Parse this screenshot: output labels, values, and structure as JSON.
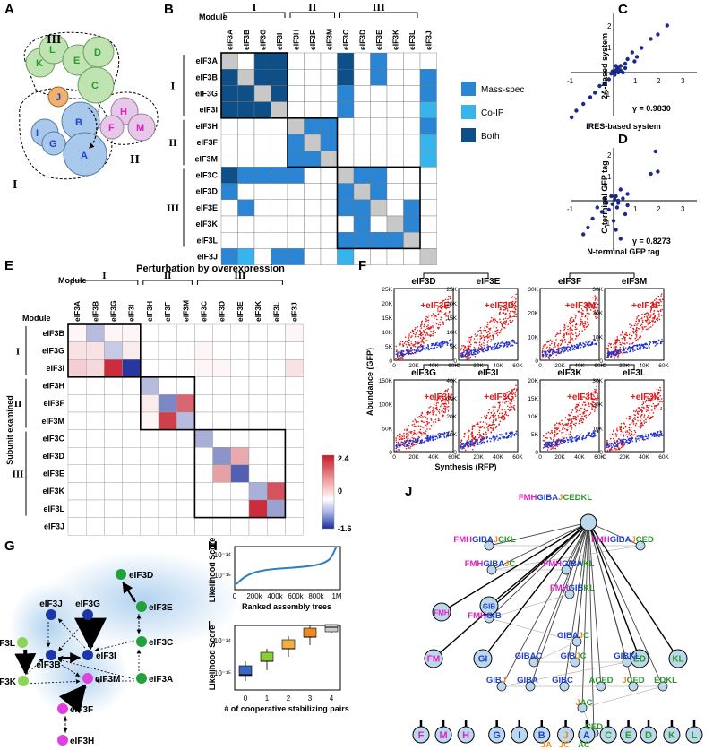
{
  "panels": {
    "A": {
      "letter": "A",
      "modules": [
        "I",
        "II",
        "III"
      ],
      "subunits": [
        "K",
        "L",
        "E",
        "D",
        "J",
        "C",
        "H",
        "F",
        "M",
        "I",
        "B",
        "G",
        "A"
      ],
      "colors": {
        "module_I": "#a8c8ec",
        "module_II": "#e6c8e8",
        "module_III": "#bfe4b2",
        "J": "#f0b070",
        "letter_green": "#2a9a2a",
        "letter_magenta": "#e020c0",
        "letter_blue": "#2040d0"
      }
    },
    "B": {
      "letter": "B",
      "module_header": "Module",
      "modules": [
        "I",
        "II",
        "III"
      ],
      "col_labels": [
        "eIF3A",
        "eIF3B",
        "eIF3G",
        "eIF3I",
        "eIF3H",
        "eIF3F",
        "eIF3M",
        "eIF3C",
        "eIF3D",
        "eIF3E",
        "eIF3K",
        "eIF3L",
        "eIF3J"
      ],
      "row_labels": [
        "eIF3A",
        "eIF3B",
        "eIF3G",
        "eIF3I",
        "eIF3H",
        "eIF3F",
        "eIF3M",
        "eIF3C",
        "eIF3D",
        "eIF3E",
        "eIF3K",
        "eIF3L",
        "eIF3J"
      ],
      "legend": [
        {
          "label": "Mass-spec",
          "color": "#2a86d4"
        },
        {
          "label": "Co-IP",
          "color": "#38b4ec"
        },
        {
          "label": "Both",
          "color": "#0d4f86"
        }
      ],
      "diag_color": "#c8c8c8",
      "matrix": [
        [
          9,
          0,
          3,
          3,
          0,
          0,
          0,
          3,
          0,
          1,
          0,
          0,
          0
        ],
        [
          3,
          9,
          3,
          3,
          0,
          0,
          0,
          3,
          0,
          1,
          0,
          0,
          1
        ],
        [
          3,
          3,
          9,
          3,
          0,
          0,
          0,
          1,
          0,
          0,
          0,
          0,
          1
        ],
        [
          3,
          3,
          3,
          9,
          0,
          0,
          0,
          1,
          0,
          0,
          0,
          0,
          2
        ],
        [
          0,
          0,
          0,
          0,
          9,
          1,
          1,
          0,
          0,
          0,
          0,
          0,
          1
        ],
        [
          0,
          0,
          0,
          0,
          1,
          9,
          1,
          0,
          0,
          0,
          0,
          0,
          2
        ],
        [
          0,
          0,
          0,
          0,
          1,
          1,
          9,
          0,
          0,
          0,
          0,
          0,
          2
        ],
        [
          3,
          1,
          1,
          1,
          1,
          0,
          0,
          9,
          1,
          1,
          0,
          0,
          0
        ],
        [
          1,
          0,
          0,
          0,
          0,
          0,
          0,
          1,
          9,
          1,
          0,
          0,
          0
        ],
        [
          0,
          1,
          0,
          0,
          0,
          0,
          0,
          1,
          1,
          9,
          0,
          1,
          0
        ],
        [
          0,
          0,
          0,
          0,
          0,
          0,
          0,
          0,
          1,
          0,
          9,
          1,
          0
        ],
        [
          0,
          0,
          0,
          0,
          0,
          0,
          0,
          1,
          1,
          1,
          1,
          9,
          0
        ],
        [
          1,
          2,
          0,
          1,
          1,
          0,
          0,
          2,
          0,
          0,
          0,
          0,
          9
        ]
      ]
    },
    "C": {
      "letter": "C",
      "xlabel": "IRES-based system",
      "ylabel": "2A-based system",
      "annotation": "γ = 0.9830"
    },
    "D": {
      "letter": "D",
      "xlabel": "N-terminal GFP tag",
      "ylabel": "C-terminal GFP tag",
      "annotation": "γ = 0.8273"
    },
    "E": {
      "letter": "E",
      "title": "Perturbation by overexpression",
      "module_header": "Module",
      "row_module_header": "Module",
      "yaxis_title": "Subunit examined",
      "modules": [
        "I",
        "II",
        "III"
      ],
      "col_labels": [
        "eIF3A",
        "eIF3B",
        "eIF3G",
        "eIF3I",
        "eIF3H",
        "eIF3F",
        "eIF3M",
        "eIF3C",
        "eIF3D",
        "eIF3E",
        "eIF3K",
        "eIF3L",
        "eIF3J"
      ],
      "row_labels": [
        "eIF3B",
        "eIF3G",
        "eIF3I",
        "eIF3H",
        "eIF3F",
        "eIF3M",
        "eIF3C",
        "eIF3D",
        "eIF3E",
        "eIF3K",
        "eIF3L",
        "eIF3J"
      ],
      "colorbar_ticks": [
        "2.4",
        "0",
        "-1.6"
      ],
      "colorbar_range": [
        -1.6,
        2.4
      ],
      "matrix": [
        [
          0.1,
          -0.5,
          0.1,
          0.1,
          0,
          0,
          0,
          0,
          0,
          0,
          0,
          0,
          0.1
        ],
        [
          0.3,
          0.3,
          -0.4,
          0.2,
          0,
          0,
          0,
          0.1,
          0,
          0,
          0,
          0,
          0
        ],
        [
          0.5,
          0.4,
          2.2,
          -1.5,
          0,
          0,
          0,
          0.1,
          0.1,
          0,
          0,
          0,
          0.3
        ],
        [
          0,
          0,
          0,
          0,
          -0.5,
          0,
          0,
          0,
          0,
          0,
          0,
          0,
          0
        ],
        [
          0,
          0,
          0,
          0,
          0.2,
          -0.9,
          1.6,
          0,
          0,
          0,
          0,
          0,
          0
        ],
        [
          0,
          0,
          0,
          0,
          0.1,
          2.0,
          -0.5,
          0,
          0,
          0,
          0,
          0,
          0
        ],
        [
          0,
          0,
          0,
          0,
          0,
          0,
          0,
          -0.6,
          0,
          0,
          0,
          0,
          0
        ],
        [
          0,
          0,
          0,
          0,
          0,
          0,
          0,
          0,
          -0.8,
          0.9,
          0,
          0,
          0
        ],
        [
          0,
          0,
          0,
          0,
          0,
          0,
          0,
          0,
          1.0,
          -1.2,
          0,
          0,
          0
        ],
        [
          0,
          0,
          0,
          0,
          0,
          0,
          0,
          0,
          0,
          0,
          -0.6,
          1.8,
          0
        ],
        [
          0,
          0,
          0,
          0,
          0,
          0,
          0,
          0,
          0,
          0,
          2.2,
          -0.7,
          0
        ],
        [
          0,
          0,
          0,
          0,
          0,
          0,
          0,
          0,
          0,
          0,
          0,
          0,
          0
        ]
      ]
    },
    "F": {
      "letter": "F",
      "ylabel": "Abundance (GFP)",
      "xlabel": "Synthesis (RFP)",
      "plots": [
        {
          "title": "eIF3D",
          "tag": "+eIF3E",
          "yticks": [
            "25K",
            "20K",
            "15K",
            "10K",
            "5K",
            "0"
          ],
          "xticks": [
            "0",
            "20K",
            "40K",
            "60K"
          ]
        },
        {
          "title": "eIF3E",
          "tag": "+eIF3D",
          "yticks": [
            "25K",
            "20K",
            "15K",
            "10K",
            "5K",
            "0"
          ],
          "xticks": [
            "0",
            "20K",
            "40K",
            "60K"
          ]
        },
        {
          "title": "eIF3F",
          "tag": "+eIF3M",
          "yticks": [
            "30K",
            "20K",
            "10K",
            "0"
          ],
          "xticks": [
            "0",
            "20K",
            "40K",
            "60K"
          ]
        },
        {
          "title": "eIF3M",
          "tag": "+eIF3F",
          "yticks": [
            "30K",
            "20K",
            "10K",
            "0"
          ],
          "xticks": [
            "0",
            "20K",
            "40K",
            "60K"
          ]
        },
        {
          "title": "eIF3G",
          "tag": "+eIF3I",
          "yticks": [
            "150K",
            "100K",
            "50K",
            "0"
          ],
          "xticks": [
            "0",
            "20K",
            "40K",
            "60K"
          ]
        },
        {
          "title": "eIF3I",
          "tag": "+eIF3G",
          "yticks": [
            "40K",
            "30K",
            "20K",
            "10K",
            "0"
          ],
          "xticks": [
            "0",
            "20K",
            "40K",
            "60K"
          ]
        },
        {
          "title": "eIF3K",
          "tag": "+eIF3L",
          "yticks": [
            "20K",
            "15K",
            "10K",
            "5K",
            "0"
          ],
          "xticks": [
            "0",
            "20K",
            "40K",
            "60K"
          ]
        },
        {
          "title": "eIF3L",
          "tag": "+eIF3K",
          "yticks": [
            "30K",
            "20K",
            "10K",
            "0"
          ],
          "xticks": [
            "0",
            "20K",
            "40K",
            "60K"
          ]
        }
      ]
    },
    "G": {
      "letter": "G",
      "nodes": [
        {
          "label": "eIF3D",
          "color": "#22a03a"
        },
        {
          "label": "eIF3E",
          "color": "#22a03a"
        },
        {
          "label": "eIF3J",
          "color": "#1a36a8"
        },
        {
          "label": "eIF3G",
          "color": "#1a36a8"
        },
        {
          "label": "eIF3C",
          "color": "#22a03a"
        },
        {
          "label": "eIF3L",
          "color": "#8cd45a"
        },
        {
          "label": "eIF3B",
          "color": "#1a36a8"
        },
        {
          "label": "eIF3I",
          "color": "#1a36a8"
        },
        {
          "label": "eIF3K",
          "color": "#8cd45a"
        },
        {
          "label": "eIF3M",
          "color": "#e040e0"
        },
        {
          "label": "eIF3A",
          "color": "#22a03a"
        },
        {
          "label": "eIF3F",
          "color": "#e040e0"
        },
        {
          "label": "eIF3H",
          "color": "#e040e0"
        }
      ]
    },
    "H": {
      "letter": "H",
      "ylabel": "Likelihood Score",
      "xlabel": "Ranked assembly trees",
      "yticks": [
        "10⁻¹⁴",
        "10⁻¹⁵"
      ],
      "xticks": [
        "0",
        "200k",
        "400k",
        "600k",
        "800k",
        "1M"
      ]
    },
    "I": {
      "letter": "I",
      "ylabel": "Likelihood Score",
      "xlabel": "# of cooperative stabilizing pairs",
      "yticks": [
        "10⁻¹⁴",
        "10⁻¹⁵"
      ],
      "xticks": [
        "0",
        "1",
        "2",
        "3",
        "4"
      ],
      "box_colors": [
        "#3a66c4",
        "#8ccc3a",
        "#f0b040",
        "#f08a20",
        "#cccccc"
      ]
    },
    "J": {
      "letter": "J",
      "root": "FMHGIBAJCEDKL",
      "leaves": [
        "F",
        "M",
        "H",
        "G",
        "I",
        "B",
        "J",
        "A",
        "C",
        "E",
        "D",
        "K",
        "L"
      ],
      "intermediate": [
        "FMH",
        "FM",
        "GIB",
        "GI",
        "ED",
        "KL"
      ],
      "text_colors": {
        "module_II": "#e020c0",
        "module_I": "#2040d0",
        "J": "#f08a20",
        "module_III": "#2a9a2a"
      }
    }
  }
}
